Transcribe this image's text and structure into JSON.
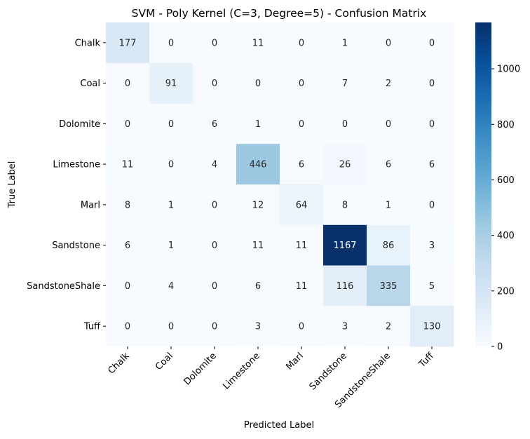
{
  "chart_data": {
    "type": "heatmap",
    "title": "SVM - Poly Kernel (C=3, Degree=5) - Confusion Matrix",
    "xlabel": "Predicted Label",
    "ylabel": "True Label",
    "x_categories": [
      "Chalk",
      "Coal",
      "Dolomite",
      "Limestone",
      "Marl",
      "Sandstone",
      "SandstoneShale",
      "Tuff"
    ],
    "y_categories": [
      "Chalk",
      "Coal",
      "Dolomite",
      "Limestone",
      "Marl",
      "Sandstone",
      "SandstoneShale",
      "Tuff"
    ],
    "matrix": [
      [
        177,
        0,
        0,
        11,
        0,
        1,
        0,
        0
      ],
      [
        0,
        91,
        0,
        0,
        0,
        7,
        2,
        0
      ],
      [
        0,
        0,
        6,
        1,
        0,
        0,
        0,
        0
      ],
      [
        11,
        0,
        4,
        446,
        6,
        26,
        6,
        6
      ],
      [
        8,
        1,
        0,
        12,
        64,
        8,
        1,
        0
      ],
      [
        6,
        1,
        0,
        11,
        11,
        1167,
        86,
        3
      ],
      [
        0,
        4,
        0,
        6,
        11,
        116,
        335,
        5
      ],
      [
        0,
        0,
        0,
        3,
        0,
        3,
        2,
        130
      ]
    ],
    "colormap": "Blues",
    "colorbar": {
      "ticks": [
        0,
        200,
        400,
        600,
        800,
        1000
      ],
      "range": [
        0,
        1167
      ]
    },
    "grid": false
  }
}
